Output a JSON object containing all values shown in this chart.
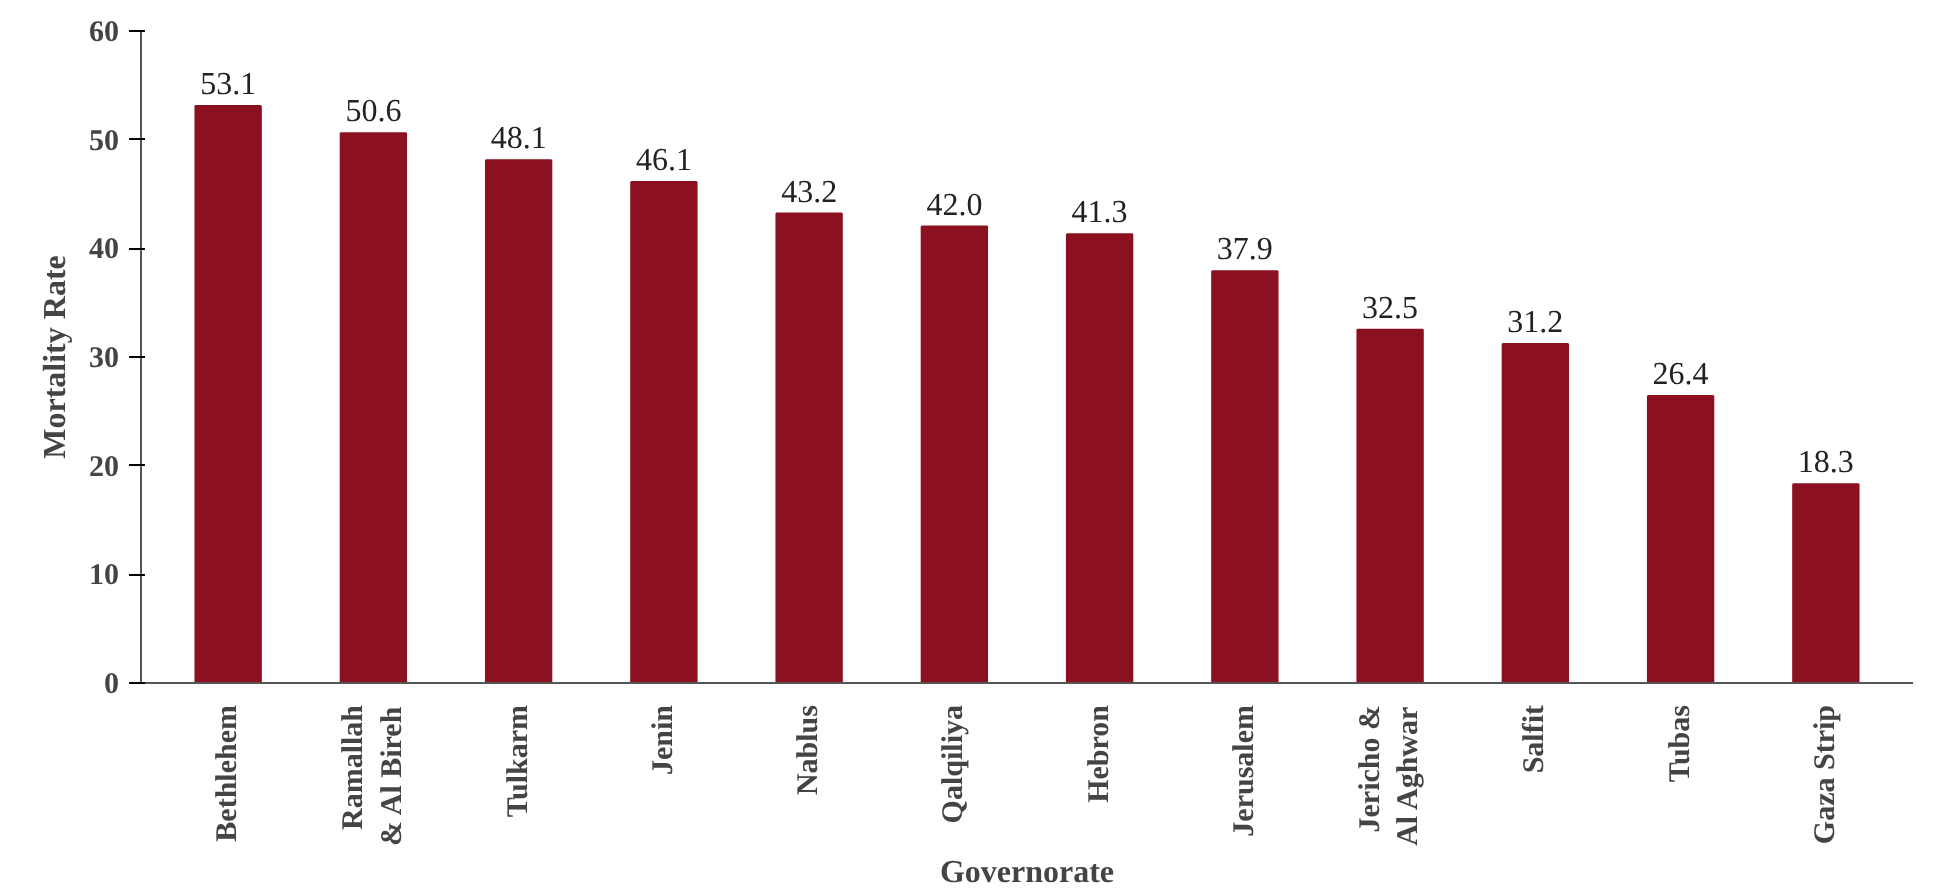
{
  "chart_data": {
    "type": "bar",
    "xlabel": "Governorate",
    "ylabel": "Mortality Rate",
    "categories": [
      "Bethlehem",
      "Ramallah\n& Al Bireh",
      "Tulkarm",
      "Jenin",
      "Nablus",
      "Qalqiliya",
      "Hebron",
      "Jerusalem",
      "Jericho &\nAl Aghwar",
      "Salfit",
      "Tubas",
      "Gaza Strip"
    ],
    "values": [
      53.1,
      50.6,
      48.1,
      46.1,
      43.2,
      42.0,
      41.3,
      37.9,
      32.5,
      31.2,
      26.4,
      18.3
    ],
    "value_labels": [
      "53.1",
      "50.6",
      "48.1",
      "46.1",
      "43.2",
      "42.0",
      "41.3",
      "37.9",
      "32.5",
      "31.2",
      "26.4",
      "18.3"
    ],
    "color": "#8b1020",
    "ylim": [
      0,
      60
    ],
    "yticks": [
      0,
      10,
      20,
      30,
      40,
      50,
      60
    ]
  }
}
